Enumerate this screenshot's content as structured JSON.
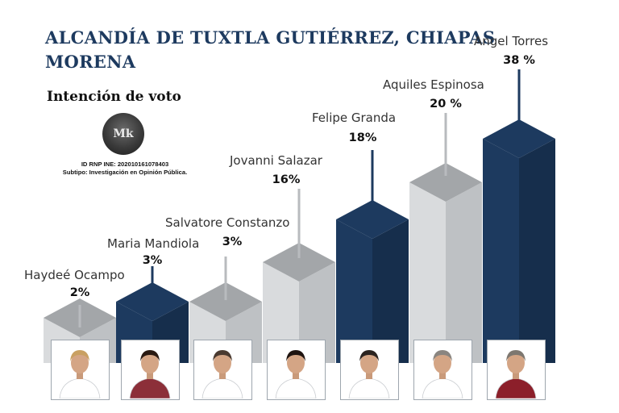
{
  "header": {
    "title_line1": "ALCANDÍA DE TUXTLA GUTIÉRREZ, CHIAPAS",
    "title_line2": "MORENA",
    "subtitle": "Intención de voto",
    "logo_text": "Mk",
    "rnp_line": "ID RNP INE: 202010161078403",
    "subtype_line": "Subtipo: Investigación en Opinión Pública."
  },
  "colors": {
    "navy": "#1d3a5f",
    "gray": "#a7aaad",
    "light_gray": "#dcdee0"
  },
  "chart_data": {
    "type": "bar",
    "categories": [
      "Haydeé Ocampo",
      "Maria Mandiola",
      "Salvatore Constanzo",
      "Jovanni Salazar",
      "Felipe Granda",
      "Aquiles Espinosa",
      "Angel Torres"
    ],
    "values": [
      2,
      3,
      3,
      16,
      18,
      20,
      38
    ],
    "value_labels": [
      "2%",
      "3%",
      "3%",
      "16%",
      "18%",
      "20 %",
      "38 %"
    ],
    "bar_colors": [
      "gray",
      "navy",
      "gray",
      "gray",
      "navy",
      "gray",
      "navy"
    ],
    "title": "ALCANDÍA DE TUXTLA GUTIÉRREZ, CHIAPAS",
    "unit": "%"
  },
  "candidates": [
    {
      "name": "Haydeé Ocampo",
      "photo": "candidate-photo",
      "shirt": "#ffffff",
      "hair": "#c9a062"
    },
    {
      "name": "Maria Mandiola",
      "photo": "candidate-photo",
      "shirt": "#8c2f39",
      "hair": "#2a1a12"
    },
    {
      "name": "Salvatore Constanzo",
      "photo": "candidate-photo",
      "shirt": "#ffffff",
      "hair": "#4a3a30"
    },
    {
      "name": "Jovanni Salazar",
      "photo": "candidate-photo",
      "shirt": "#ffffff",
      "hair": "#1e1410"
    },
    {
      "name": "Felipe Granda",
      "photo": "candidate-photo",
      "shirt": "#ffffff",
      "hair": "#2b2420"
    },
    {
      "name": "Aquiles Espinosa",
      "photo": "candidate-photo",
      "shirt": "#ffffff",
      "hair": "#8a8580"
    },
    {
      "name": "Angel Torres",
      "photo": "candidate-photo",
      "shirt": "#8c1f2a",
      "hair": "#7d7770"
    }
  ]
}
